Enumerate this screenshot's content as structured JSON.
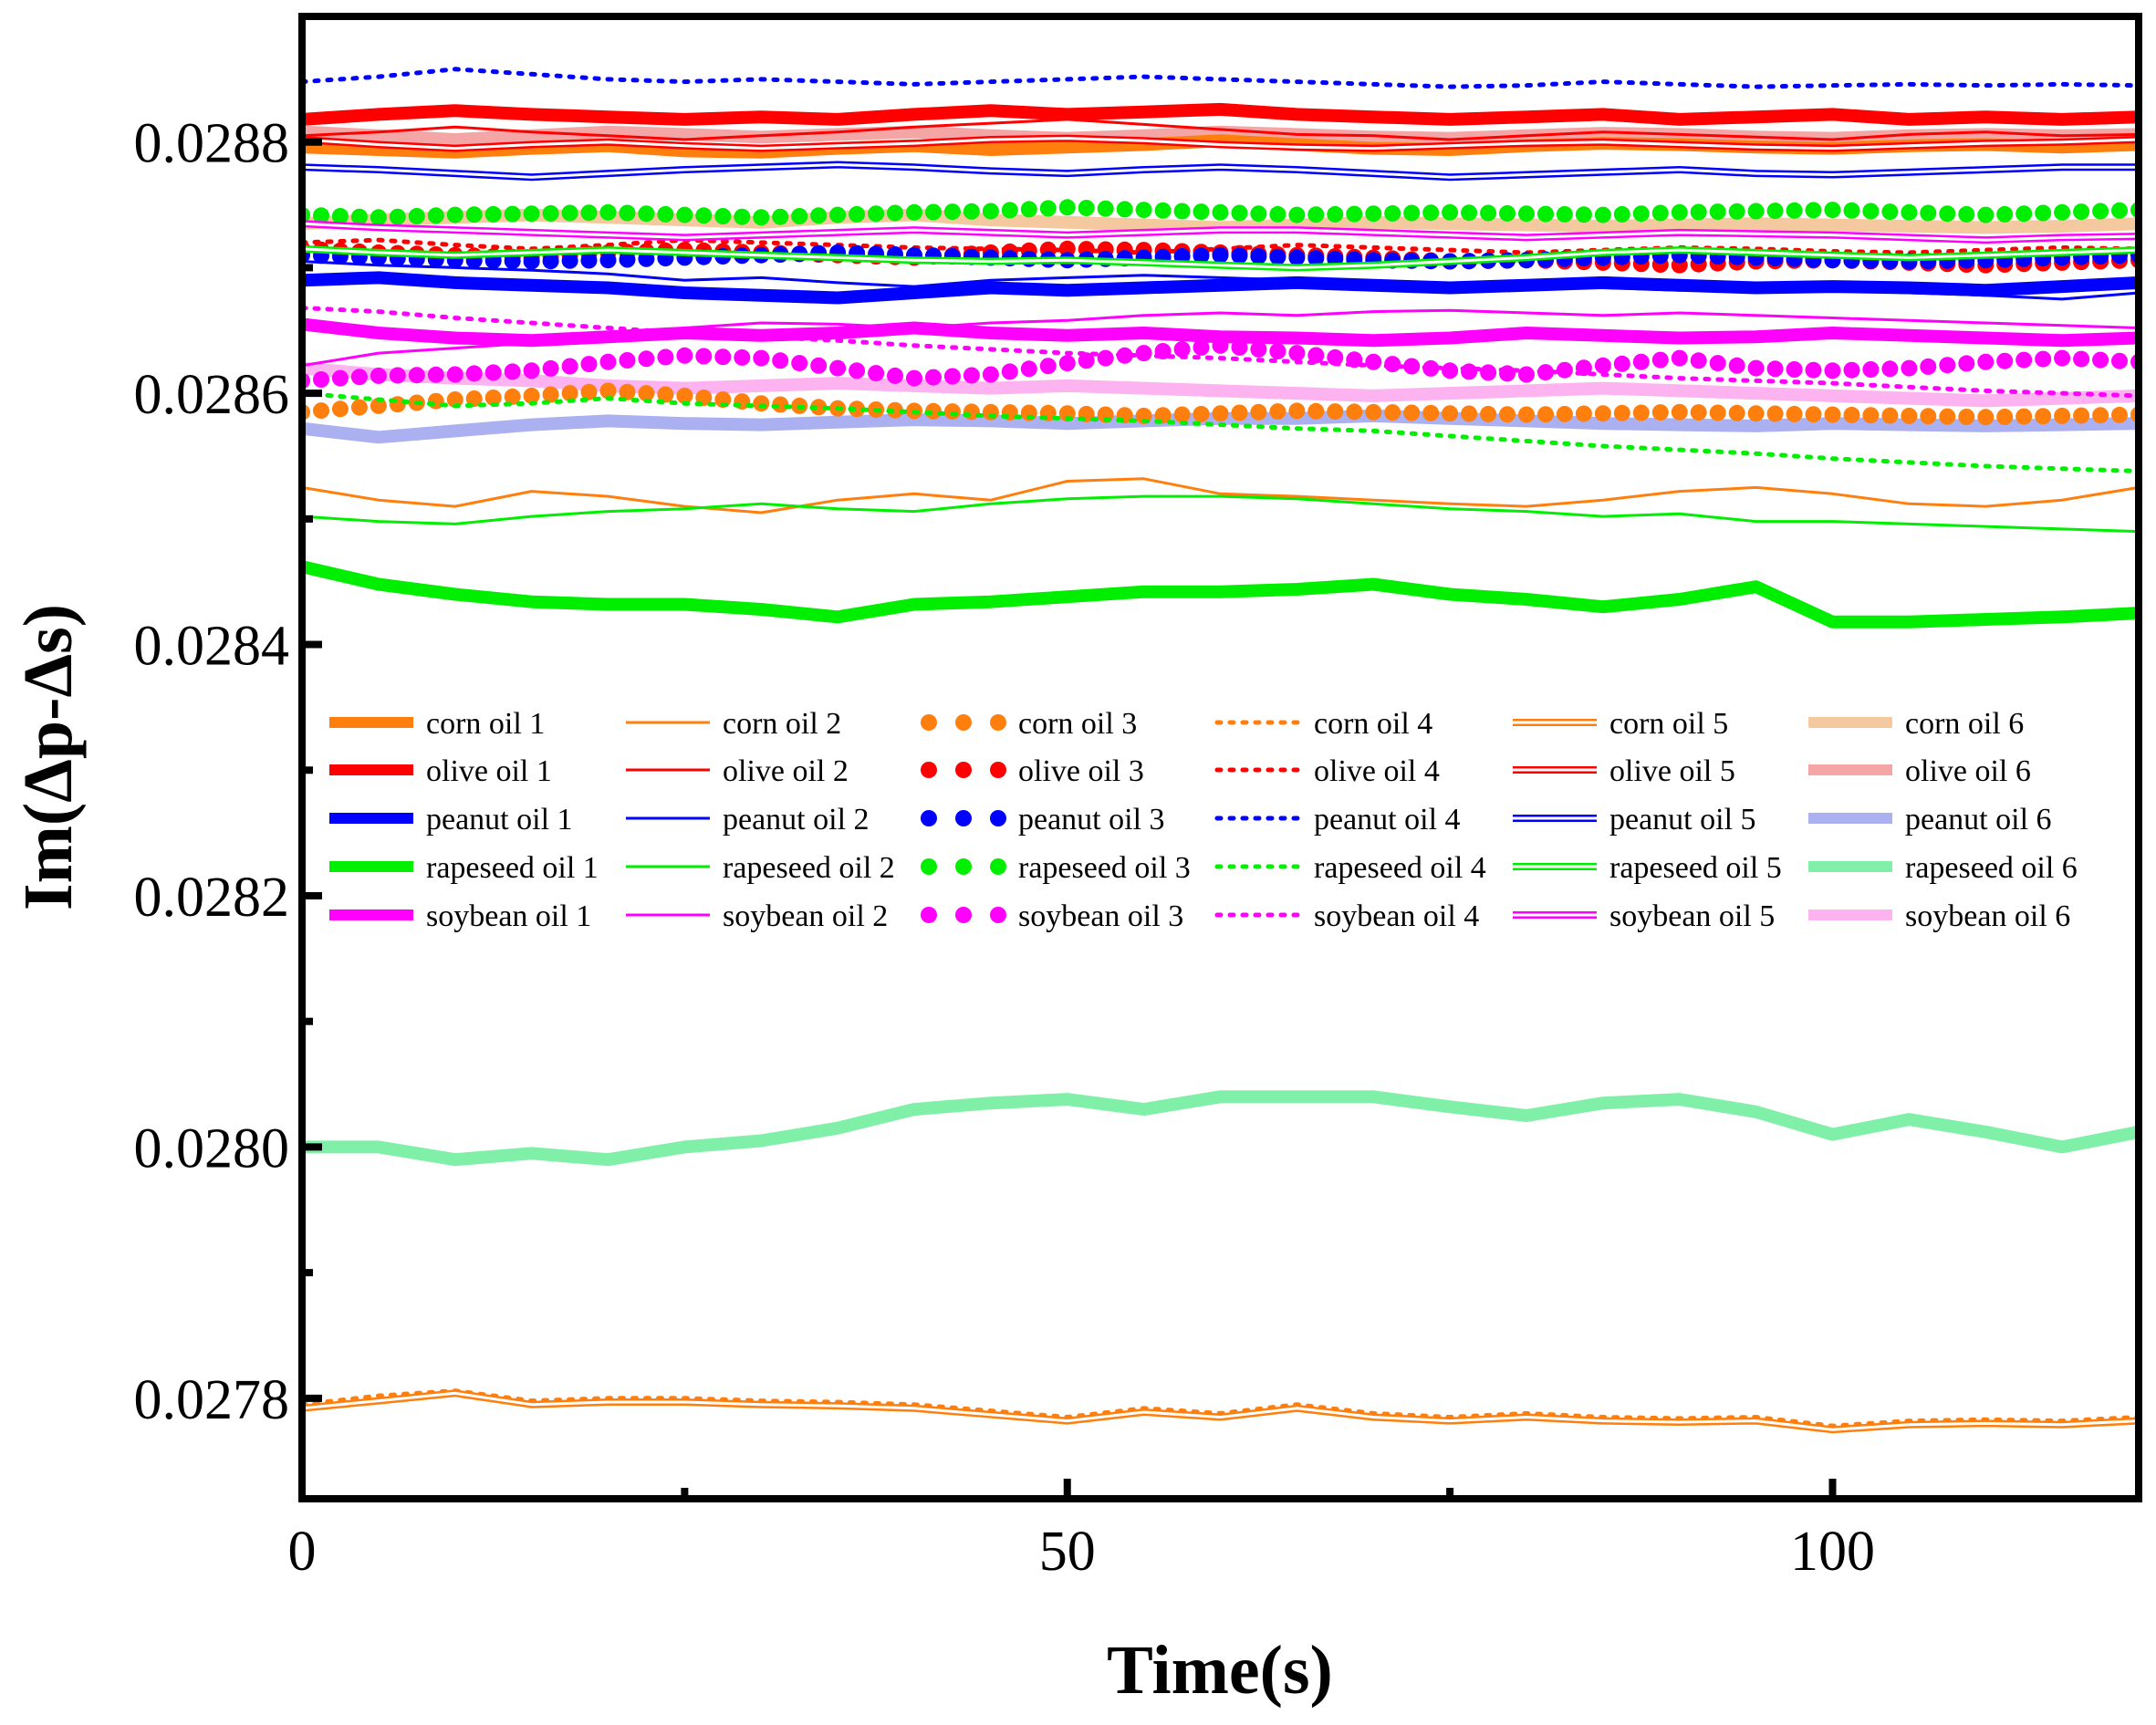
{
  "chart_data": {
    "type": "line",
    "title": "",
    "xlabel": "Time(s)",
    "ylabel": "Im(Δp-Δs)",
    "xlim": [
      0,
      120
    ],
    "ylim": [
      0.02772,
      0.0289
    ],
    "x_ticks": [
      0,
      50,
      100
    ],
    "y_ticks": [
      0.0278,
      0.028,
      0.0282,
      0.0284,
      0.0286,
      0.0288
    ],
    "y_tick_labels": [
      "0.0278",
      "0.0280",
      "0.0282",
      "0.0284",
      "0.0286",
      "0.0288"
    ],
    "grid": false,
    "legend_position": "center",
    "legend_columns": 6,
    "x": [
      0,
      5,
      10,
      15,
      20,
      25,
      30,
      35,
      40,
      45,
      50,
      55,
      60,
      65,
      70,
      75,
      80,
      85,
      90,
      95,
      100,
      105,
      110,
      115,
      120
    ],
    "series": [
      {
        "name": "corn oil 1",
        "color": "#ff7f0e",
        "style": "thick",
        "values": [
          0.028796,
          0.028794,
          0.028792,
          0.028795,
          0.028797,
          0.028793,
          0.028792,
          0.028795,
          0.028797,
          0.028794,
          0.028796,
          0.028798,
          0.028801,
          0.028798,
          0.028795,
          0.028794,
          0.028797,
          0.028799,
          0.028798,
          0.028796,
          0.028795,
          0.028797,
          0.028798,
          0.028796,
          0.028798
        ]
      },
      {
        "name": "corn oil 2",
        "color": "#ff7f0e",
        "style": "thin",
        "values": [
          0.028525,
          0.028515,
          0.02851,
          0.028522,
          0.028518,
          0.02851,
          0.028505,
          0.028515,
          0.02852,
          0.028515,
          0.02853,
          0.028532,
          0.02852,
          0.028518,
          0.028515,
          0.028512,
          0.02851,
          0.028515,
          0.028522,
          0.028525,
          0.02852,
          0.028512,
          0.02851,
          0.028515,
          0.028525
        ]
      },
      {
        "name": "corn oil 3",
        "color": "#ff7f0e",
        "style": "dots-large",
        "values": [
          0.028585,
          0.02859,
          0.028595,
          0.028598,
          0.028602,
          0.028598,
          0.028592,
          0.028588,
          0.028586,
          0.028585,
          0.028584,
          0.028582,
          0.028584,
          0.028586,
          0.028585,
          0.028584,
          0.028583,
          0.028584,
          0.028585,
          0.028584,
          0.028583,
          0.028582,
          0.028581,
          0.028582,
          0.028583
        ]
      },
      {
        "name": "corn oil 4",
        "color": "#ff7f0e",
        "style": "dotted",
        "values": [
          0.027795,
          0.027802,
          0.027806,
          0.027798,
          0.0278,
          0.0278,
          0.027798,
          0.027797,
          0.027795,
          0.02779,
          0.027785,
          0.027792,
          0.027788,
          0.027795,
          0.027788,
          0.027785,
          0.027788,
          0.027785,
          0.027784,
          0.027785,
          0.027778,
          0.027782,
          0.027783,
          0.027782,
          0.027785
        ]
      },
      {
        "name": "corn oil 5",
        "color": "#ff7f0e",
        "style": "double",
        "values": [
          0.027792,
          0.027798,
          0.027804,
          0.027795,
          0.027797,
          0.027797,
          0.027795,
          0.027794,
          0.027792,
          0.027787,
          0.027782,
          0.027789,
          0.027785,
          0.027792,
          0.027785,
          0.027782,
          0.027785,
          0.027782,
          0.027781,
          0.027782,
          0.027775,
          0.027779,
          0.02778,
          0.027779,
          0.027782
        ]
      },
      {
        "name": "corn oil 6",
        "color": "#f5c9a0",
        "style": "thick",
        "values": [
          0.028735,
          0.028738,
          0.02874,
          0.028742,
          0.02874,
          0.028738,
          0.028736,
          0.02874,
          0.028742,
          0.028738,
          0.028736,
          0.028734,
          0.028732,
          0.028734,
          0.028736,
          0.028735,
          0.028734,
          0.028733,
          0.028734,
          0.028735,
          0.028734,
          0.028733,
          0.028732,
          0.028733,
          0.028735
        ]
      },
      {
        "name": "olive oil 1",
        "color": "#ff0000",
        "style": "thick",
        "values": [
          0.028818,
          0.028822,
          0.028825,
          0.028822,
          0.02882,
          0.028818,
          0.02882,
          0.028818,
          0.028822,
          0.028825,
          0.028822,
          0.028824,
          0.028826,
          0.028822,
          0.02882,
          0.028818,
          0.02882,
          0.028822,
          0.028818,
          0.02882,
          0.028822,
          0.028818,
          0.02882,
          0.028818,
          0.02882
        ]
      },
      {
        "name": "olive oil 2",
        "color": "#ff0000",
        "style": "thin",
        "values": [
          0.028805,
          0.028808,
          0.028812,
          0.028808,
          0.028805,
          0.028802,
          0.028805,
          0.028808,
          0.028812,
          0.028815,
          0.028818,
          0.028814,
          0.02881,
          0.028806,
          0.028805,
          0.028802,
          0.028805,
          0.028808,
          0.028806,
          0.028804,
          0.028802,
          0.028806,
          0.028808,
          0.028805,
          0.028806
        ]
      },
      {
        "name": "olive oil 3",
        "color": "#ff0000",
        "style": "dots-large",
        "values": [
          0.028715,
          0.028712,
          0.02871,
          0.028708,
          0.028712,
          0.028714,
          0.028712,
          0.02871,
          0.028708,
          0.028712,
          0.028715,
          0.028714,
          0.028712,
          0.02871,
          0.028708,
          0.028705,
          0.028706,
          0.028704,
          0.028702,
          0.028705,
          0.028706,
          0.028704,
          0.028702,
          0.028704,
          0.028706
        ]
      },
      {
        "name": "olive oil 4",
        "color": "#ff0000",
        "style": "dotted",
        "values": [
          0.02872,
          0.028722,
          0.028718,
          0.028715,
          0.028718,
          0.028722,
          0.02872,
          0.028718,
          0.028716,
          0.028715,
          0.028714,
          0.028712,
          0.028715,
          0.028718,
          0.028716,
          0.028714,
          0.028712,
          0.028714,
          0.028716,
          0.028715,
          0.028713,
          0.028712,
          0.028714,
          0.028716,
          0.028715
        ]
      },
      {
        "name": "olive oil 5",
        "color": "#ff0000",
        "style": "double",
        "values": [
          0.028802,
          0.028798,
          0.028795,
          0.028798,
          0.0288,
          0.028797,
          0.028795,
          0.028797,
          0.028799,
          0.028802,
          0.028803,
          0.028801,
          0.028798,
          0.028796,
          0.028795,
          0.028797,
          0.028799,
          0.0288,
          0.028798,
          0.028796,
          0.028795,
          0.028797,
          0.028799,
          0.0288,
          0.028802
        ]
      },
      {
        "name": "olive oil 6",
        "color": "#f4a6a6",
        "style": "thick",
        "values": [
          0.028808,
          0.028805,
          0.028802,
          0.028805,
          0.028808,
          0.028806,
          0.028804,
          0.028806,
          0.028808,
          0.028805,
          0.028803,
          0.028805,
          0.028808,
          0.028806,
          0.028804,
          0.028803,
          0.028805,
          0.028807,
          0.028806,
          0.028804,
          0.028803,
          0.028805,
          0.028806,
          0.028805,
          0.028806
        ]
      },
      {
        "name": "peanut oil 1",
        "color": "#0000ff",
        "style": "thick",
        "values": [
          0.02869,
          0.028692,
          0.028688,
          0.028686,
          0.028684,
          0.02868,
          0.028678,
          0.028676,
          0.02868,
          0.028684,
          0.028682,
          0.028684,
          0.028686,
          0.028688,
          0.028686,
          0.028684,
          0.028686,
          0.028688,
          0.028686,
          0.028684,
          0.028685,
          0.028684,
          0.028682,
          0.028685,
          0.028688
        ]
      },
      {
        "name": "peanut oil 2",
        "color": "#0000ff",
        "style": "thin",
        "values": [
          0.028705,
          0.028702,
          0.0287,
          0.028698,
          0.028695,
          0.02869,
          0.028692,
          0.028688,
          0.028685,
          0.02869,
          0.028692,
          0.028694,
          0.028692,
          0.02869,
          0.028688,
          0.028685,
          0.028686,
          0.028684,
          0.028682,
          0.028684,
          0.028682,
          0.02868,
          0.028678,
          0.028675,
          0.02868
        ]
      },
      {
        "name": "peanut oil 3",
        "color": "#0000ff",
        "style": "dots-large",
        "values": [
          0.02871,
          0.028708,
          0.028706,
          0.028705,
          0.028706,
          0.028708,
          0.02871,
          0.028712,
          0.02871,
          0.028708,
          0.028706,
          0.028708,
          0.02871,
          0.028708,
          0.028706,
          0.028705,
          0.028706,
          0.028708,
          0.02871,
          0.028708,
          0.028706,
          0.028705,
          0.028706,
          0.028708,
          0.02871
        ]
      },
      {
        "name": "peanut oil 4",
        "color": "#0000ff",
        "style": "dotted",
        "values": [
          0.028848,
          0.028852,
          0.028858,
          0.028854,
          0.02885,
          0.028848,
          0.02885,
          0.028848,
          0.028846,
          0.028848,
          0.02885,
          0.028852,
          0.02885,
          0.028848,
          0.028846,
          0.028844,
          0.028845,
          0.028848,
          0.028846,
          0.028844,
          0.028845,
          0.028846,
          0.028845,
          0.028846,
          0.028845
        ]
      },
      {
        "name": "peanut oil 5",
        "color": "#0000ff",
        "style": "double",
        "values": [
          0.02878,
          0.028778,
          0.028775,
          0.028772,
          0.028775,
          0.028778,
          0.02878,
          0.028782,
          0.02878,
          0.028777,
          0.028775,
          0.028778,
          0.02878,
          0.028778,
          0.028775,
          0.028772,
          0.028774,
          0.028776,
          0.028778,
          0.028775,
          0.028774,
          0.028776,
          0.028778,
          0.02878,
          0.02878
        ]
      },
      {
        "name": "peanut oil 6",
        "color": "#aab0f0",
        "style": "thick",
        "values": [
          0.028572,
          0.028565,
          0.02857,
          0.028575,
          0.028578,
          0.028576,
          0.028575,
          0.028577,
          0.028579,
          0.028578,
          0.028576,
          0.028578,
          0.02858,
          0.02858,
          0.028582,
          0.02858,
          0.028578,
          0.028576,
          0.028575,
          0.028574,
          0.028576,
          0.028575,
          0.028574,
          0.028575,
          0.028576
        ]
      },
      {
        "name": "rapeseed oil 1",
        "color": "#00ee00",
        "style": "thick",
        "values": [
          0.028462,
          0.028448,
          0.02844,
          0.028434,
          0.028432,
          0.028432,
          0.028428,
          0.028422,
          0.028432,
          0.028434,
          0.028438,
          0.028442,
          0.028442,
          0.028444,
          0.028448,
          0.02844,
          0.028436,
          0.02843,
          0.028436,
          0.028446,
          0.028418,
          0.028418,
          0.02842,
          0.028422,
          0.028425
        ]
      },
      {
        "name": "rapeseed oil 2",
        "color": "#00ee00",
        "style": "thin",
        "values": [
          0.028502,
          0.028498,
          0.028496,
          0.028502,
          0.028506,
          0.028508,
          0.028512,
          0.028508,
          0.028506,
          0.028512,
          0.028516,
          0.028518,
          0.028518,
          0.028516,
          0.028512,
          0.028508,
          0.028506,
          0.028502,
          0.028504,
          0.028498,
          0.028498,
          0.028496,
          0.028494,
          0.028492,
          0.02849
        ]
      },
      {
        "name": "rapeseed oil 3",
        "color": "#00ee00",
        "style": "dots-large",
        "values": [
          0.028742,
          0.02874,
          0.028742,
          0.028743,
          0.028744,
          0.028742,
          0.02874,
          0.028742,
          0.028744,
          0.028745,
          0.028748,
          0.028746,
          0.028744,
          0.028742,
          0.028743,
          0.028744,
          0.028743,
          0.028742,
          0.028744,
          0.028745,
          0.028746,
          0.028744,
          0.028742,
          0.028744,
          0.028746
        ]
      },
      {
        "name": "rapeseed oil 4",
        "color": "#00ee00",
        "style": "dotted",
        "values": [
          0.0286,
          0.028595,
          0.02859,
          0.028592,
          0.028596,
          0.028592,
          0.02859,
          0.028588,
          0.028585,
          0.028582,
          0.02858,
          0.028578,
          0.028575,
          0.028572,
          0.02857,
          0.028566,
          0.028562,
          0.028558,
          0.028555,
          0.028552,
          0.028548,
          0.028545,
          0.028542,
          0.02854,
          0.028538
        ]
      },
      {
        "name": "rapeseed oil 5",
        "color": "#00ee00",
        "style": "double",
        "values": [
          0.028715,
          0.028712,
          0.02871,
          0.028712,
          0.028714,
          0.028712,
          0.02871,
          0.028708,
          0.028706,
          0.028705,
          0.028706,
          0.028704,
          0.028702,
          0.0287,
          0.028702,
          0.028705,
          0.028708,
          0.028712,
          0.028714,
          0.028712,
          0.02871,
          0.028708,
          0.02871,
          0.028712,
          0.028714
        ]
      },
      {
        "name": "rapeseed oil 6",
        "color": "#80f0a8",
        "style": "thick",
        "values": [
          0.028,
          0.028,
          0.02799,
          0.027995,
          0.02799,
          0.028,
          0.028005,
          0.028015,
          0.02803,
          0.028035,
          0.028038,
          0.02803,
          0.02804,
          0.02804,
          0.02804,
          0.028032,
          0.028025,
          0.028035,
          0.028038,
          0.028028,
          0.02801,
          0.028022,
          0.028012,
          0.028,
          0.028012
        ]
      },
      {
        "name": "soybean oil 1",
        "color": "#ff00ff",
        "style": "thick",
        "values": [
          0.028655,
          0.028648,
          0.028644,
          0.028642,
          0.028645,
          0.028648,
          0.028646,
          0.028648,
          0.028652,
          0.028648,
          0.028646,
          0.028648,
          0.028645,
          0.028644,
          0.028642,
          0.028644,
          0.028648,
          0.028646,
          0.028644,
          0.028645,
          0.028648,
          0.028646,
          0.028644,
          0.028642,
          0.028644
        ]
      },
      {
        "name": "soybean oil 2",
        "color": "#ff00ff",
        "style": "thin",
        "values": [
          0.028622,
          0.028632,
          0.028636,
          0.02864,
          0.028646,
          0.028652,
          0.028656,
          0.028655,
          0.028652,
          0.028656,
          0.028658,
          0.028662,
          0.028664,
          0.028662,
          0.028665,
          0.028666,
          0.028664,
          0.028662,
          0.028664,
          0.028662,
          0.02866,
          0.028658,
          0.028656,
          0.028654,
          0.028652
        ]
      },
      {
        "name": "soybean oil 3",
        "color": "#ff00ff",
        "style": "dots-large",
        "values": [
          0.02861,
          0.028614,
          0.028615,
          0.028618,
          0.028625,
          0.02863,
          0.028628,
          0.02862,
          0.028612,
          0.028615,
          0.028624,
          0.028632,
          0.028638,
          0.028632,
          0.028625,
          0.028618,
          0.028615,
          0.028622,
          0.028628,
          0.02862,
          0.028618,
          0.02862,
          0.028625,
          0.028628,
          0.028625
        ]
      },
      {
        "name": "soybean oil 4",
        "color": "#ff00ff",
        "style": "dotted",
        "values": [
          0.028668,
          0.028665,
          0.02866,
          0.028656,
          0.028652,
          0.028648,
          0.028645,
          0.028642,
          0.028638,
          0.028635,
          0.028632,
          0.02863,
          0.028628,
          0.028625,
          0.028622,
          0.02862,
          0.028618,
          0.028615,
          0.028612,
          0.02861,
          0.028608,
          0.028605,
          0.028602,
          0.0286,
          0.028598
        ]
      },
      {
        "name": "soybean oil 5",
        "color": "#ff00ff",
        "style": "double",
        "values": [
          0.028735,
          0.028732,
          0.02873,
          0.028728,
          0.028726,
          0.028724,
          0.028726,
          0.028728,
          0.02873,
          0.028728,
          0.028726,
          0.028728,
          0.02873,
          0.02873,
          0.028728,
          0.028726,
          0.028724,
          0.028726,
          0.028728,
          0.028727,
          0.028726,
          0.028724,
          0.028722,
          0.028724,
          0.028725
        ]
      },
      {
        "name": "soybean oil 6",
        "color": "#fcb3f0",
        "style": "thick",
        "values": [
          0.02862,
          0.028615,
          0.028612,
          0.02861,
          0.028606,
          0.028604,
          0.028606,
          0.028608,
          0.028606,
          0.028604,
          0.028606,
          0.028604,
          0.028602,
          0.0286,
          0.028598,
          0.0286,
          0.028602,
          0.028604,
          0.028602,
          0.0286,
          0.028598,
          0.028596,
          0.028594,
          0.028596,
          0.028598
        ]
      }
    ]
  }
}
